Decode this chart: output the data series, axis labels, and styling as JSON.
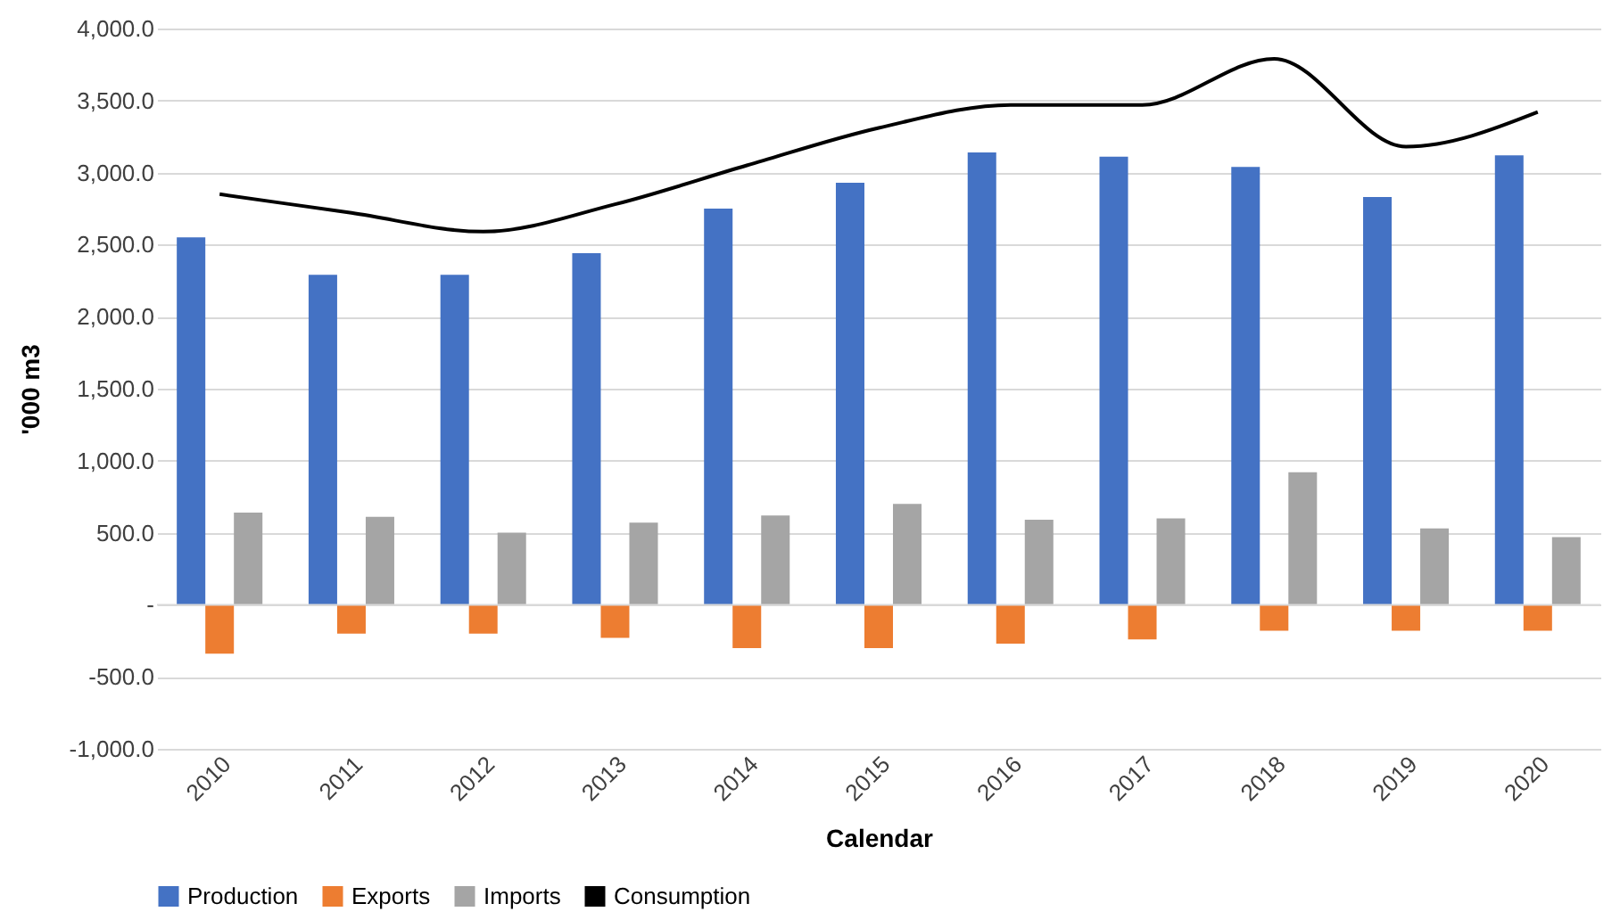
{
  "chart_data": {
    "type": "bar",
    "xlabel": "Calendar",
    "ylabel": "'000 m3",
    "categories": [
      "2010",
      "2011",
      "2012",
      "2013",
      "2014",
      "2015",
      "2016",
      "2017",
      "2018",
      "2019",
      "2020"
    ],
    "series": [
      {
        "name": "Production",
        "color": "#4472c4",
        "values": [
          2550,
          2290,
          2290,
          2440,
          2750,
          2930,
          3140,
          3110,
          3040,
          2830,
          3120
        ]
      },
      {
        "name": "Exports",
        "color": "#ed7d31",
        "values": [
          -340,
          -200,
          -200,
          -230,
          -300,
          -300,
          -270,
          -240,
          -180,
          -180,
          -180
        ]
      },
      {
        "name": "Imports",
        "color": "#a5a5a5",
        "values": [
          640,
          610,
          500,
          570,
          620,
          700,
          590,
          600,
          920,
          530,
          470
        ]
      },
      {
        "name": "Consumption",
        "color": "#000000",
        "type": "line",
        "values": [
          2850,
          2720,
          2590,
          2780,
          3050,
          3310,
          3470,
          3470,
          3790,
          3180,
          3420
        ]
      }
    ],
    "ylim": [
      -1000,
      4000
    ],
    "yticks": [
      {
        "value": -1000,
        "label": "-1,000.0"
      },
      {
        "value": -500,
        "label": "-500.0"
      },
      {
        "value": 0,
        "label": "-"
      },
      {
        "value": 500,
        "label": "500.0"
      },
      {
        "value": 1000,
        "label": "1,000.0"
      },
      {
        "value": 1500,
        "label": "1,500.0"
      },
      {
        "value": 2000,
        "label": "2,000.0"
      },
      {
        "value": 2500,
        "label": "2,500.0"
      },
      {
        "value": 3000,
        "label": "3,000.0"
      },
      {
        "value": 3500,
        "label": "3,500.0"
      },
      {
        "value": 4000,
        "label": "4,000.0"
      }
    ],
    "grid": "y",
    "legend": "bottom",
    "line_style": "solid",
    "marker": "none"
  }
}
